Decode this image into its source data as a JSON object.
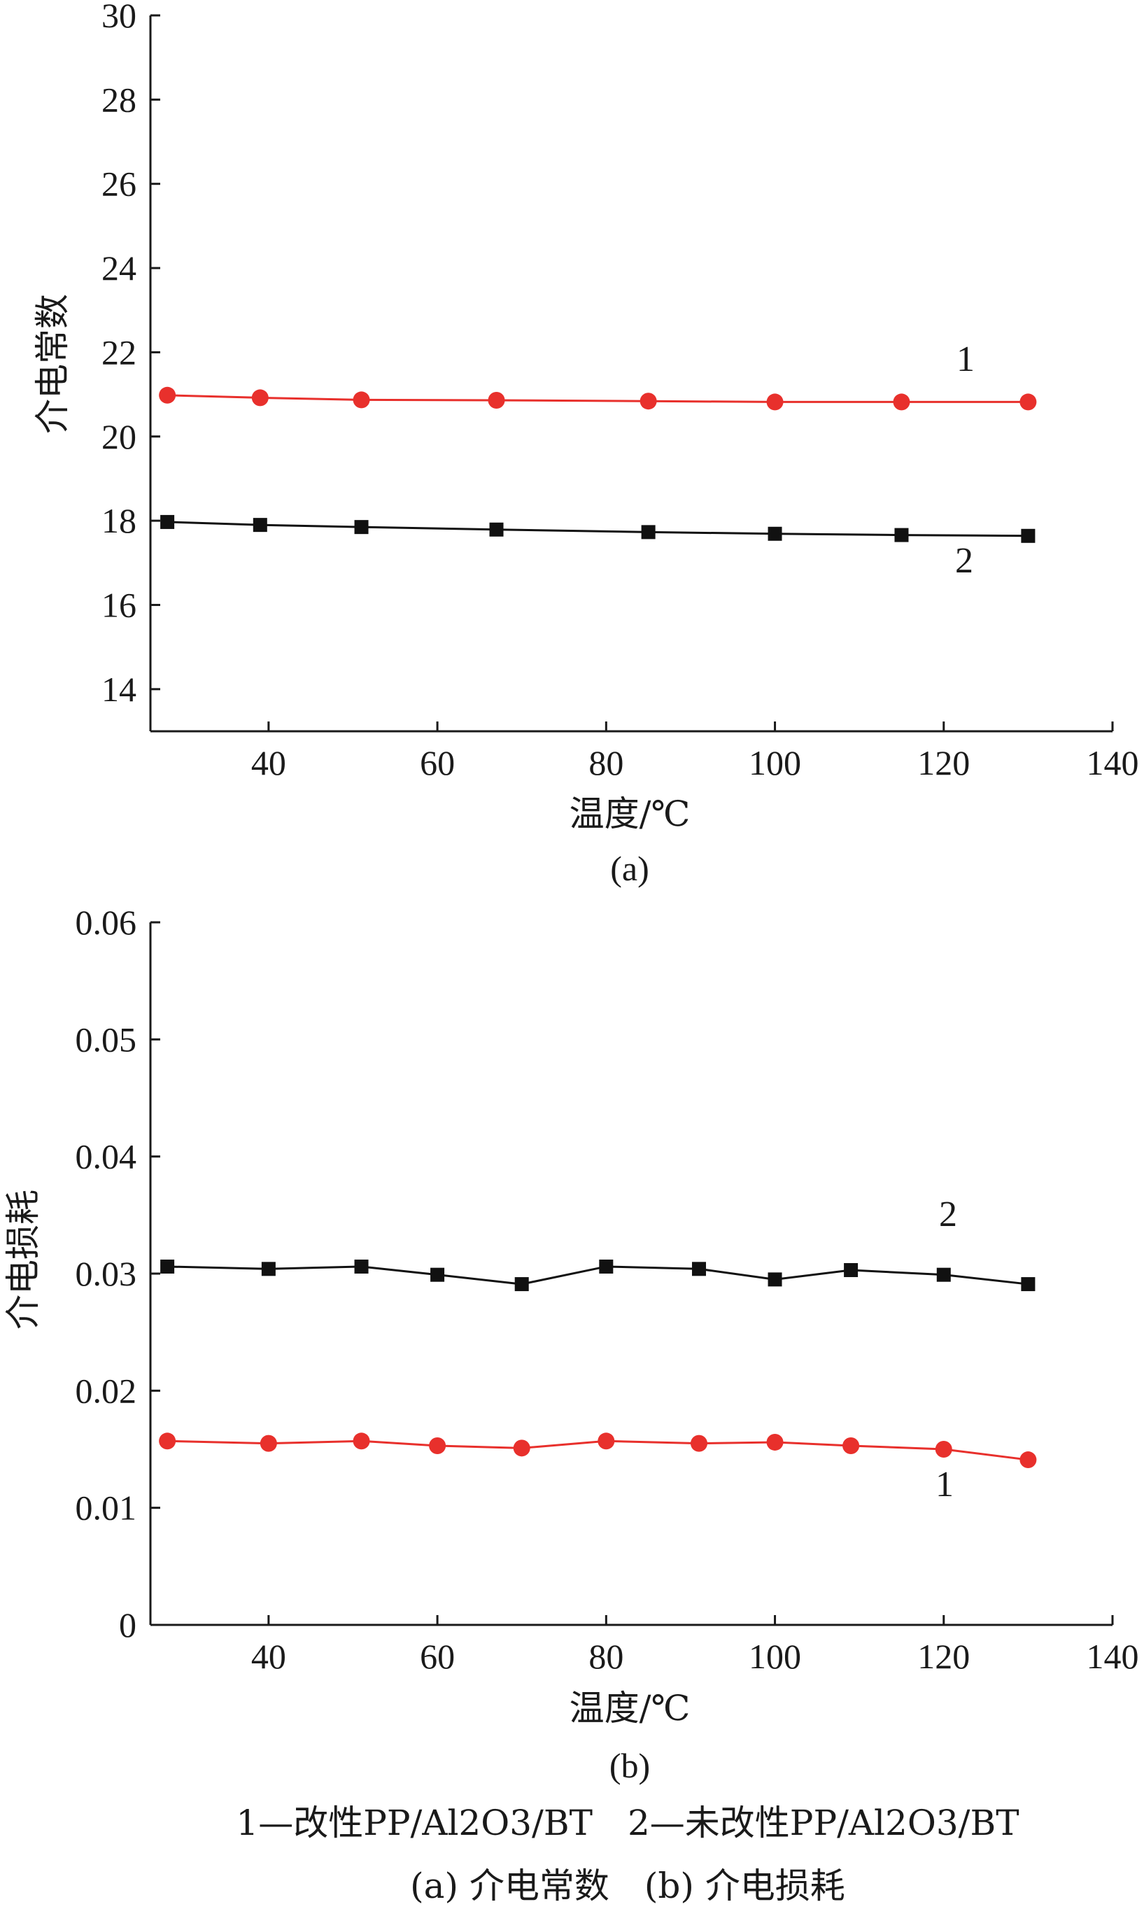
{
  "chart_data": [
    {
      "type": "line",
      "panel_label": "(a)",
      "xlabel": "温度/℃",
      "ylabel": "介电常数",
      "xlim": [
        26,
        140
      ],
      "ylim": [
        13,
        30
      ],
      "xticks": [
        "40",
        "60",
        "80",
        "100",
        "120",
        "140"
      ],
      "yticks": [
        "14",
        "16",
        "18",
        "20",
        "22",
        "24",
        "26",
        "28",
        "30"
      ],
      "grid": false,
      "series": [
        {
          "name": "1",
          "color": "#e8302c",
          "marker": "circle",
          "x": [
            28,
            39,
            51,
            67,
            85,
            100,
            115,
            130
          ],
          "y": [
            20.98,
            20.92,
            20.87,
            20.86,
            20.84,
            20.82,
            20.82,
            20.82
          ]
        },
        {
          "name": "2",
          "color": "#111111",
          "marker": "square",
          "x": [
            28,
            39,
            51,
            67,
            85,
            100,
            115,
            130
          ],
          "y": [
            17.97,
            17.9,
            17.85,
            17.79,
            17.73,
            17.69,
            17.66,
            17.64
          ]
        }
      ]
    },
    {
      "type": "line",
      "panel_label": "(b)",
      "xlabel": "温度/℃",
      "ylabel": "介电损耗",
      "xlim": [
        26,
        140
      ],
      "ylim": [
        0,
        0.06
      ],
      "xticks": [
        "40",
        "60",
        "80",
        "100",
        "120",
        "140"
      ],
      "yticks": [
        "0",
        "0.01",
        "0.02",
        "0.03",
        "0.04",
        "0.05",
        "0.06"
      ],
      "grid": false,
      "series": [
        {
          "name": "2",
          "color": "#111111",
          "marker": "square",
          "x": [
            28,
            40,
            51,
            60,
            70,
            80,
            91,
            100,
            109,
            120,
            130
          ],
          "y": [
            0.0306,
            0.0304,
            0.0306,
            0.0299,
            0.0291,
            0.0306,
            0.0304,
            0.0295,
            0.0303,
            0.0299,
            0.0291
          ]
        },
        {
          "name": "1",
          "color": "#e8302c",
          "marker": "circle",
          "x": [
            28,
            40,
            51,
            60,
            70,
            80,
            91,
            100,
            109,
            120,
            130
          ],
          "y": [
            0.0157,
            0.0155,
            0.0157,
            0.0153,
            0.0151,
            0.0157,
            0.0155,
            0.0156,
            0.0153,
            0.015,
            0.0141
          ]
        }
      ]
    }
  ],
  "caption": {
    "legend_line": "1—改性PP/Al2O3/BT　2—未改性PP/Al2O3/BT",
    "panels_line": "(a) 介电常数　(b) 介电损耗"
  }
}
